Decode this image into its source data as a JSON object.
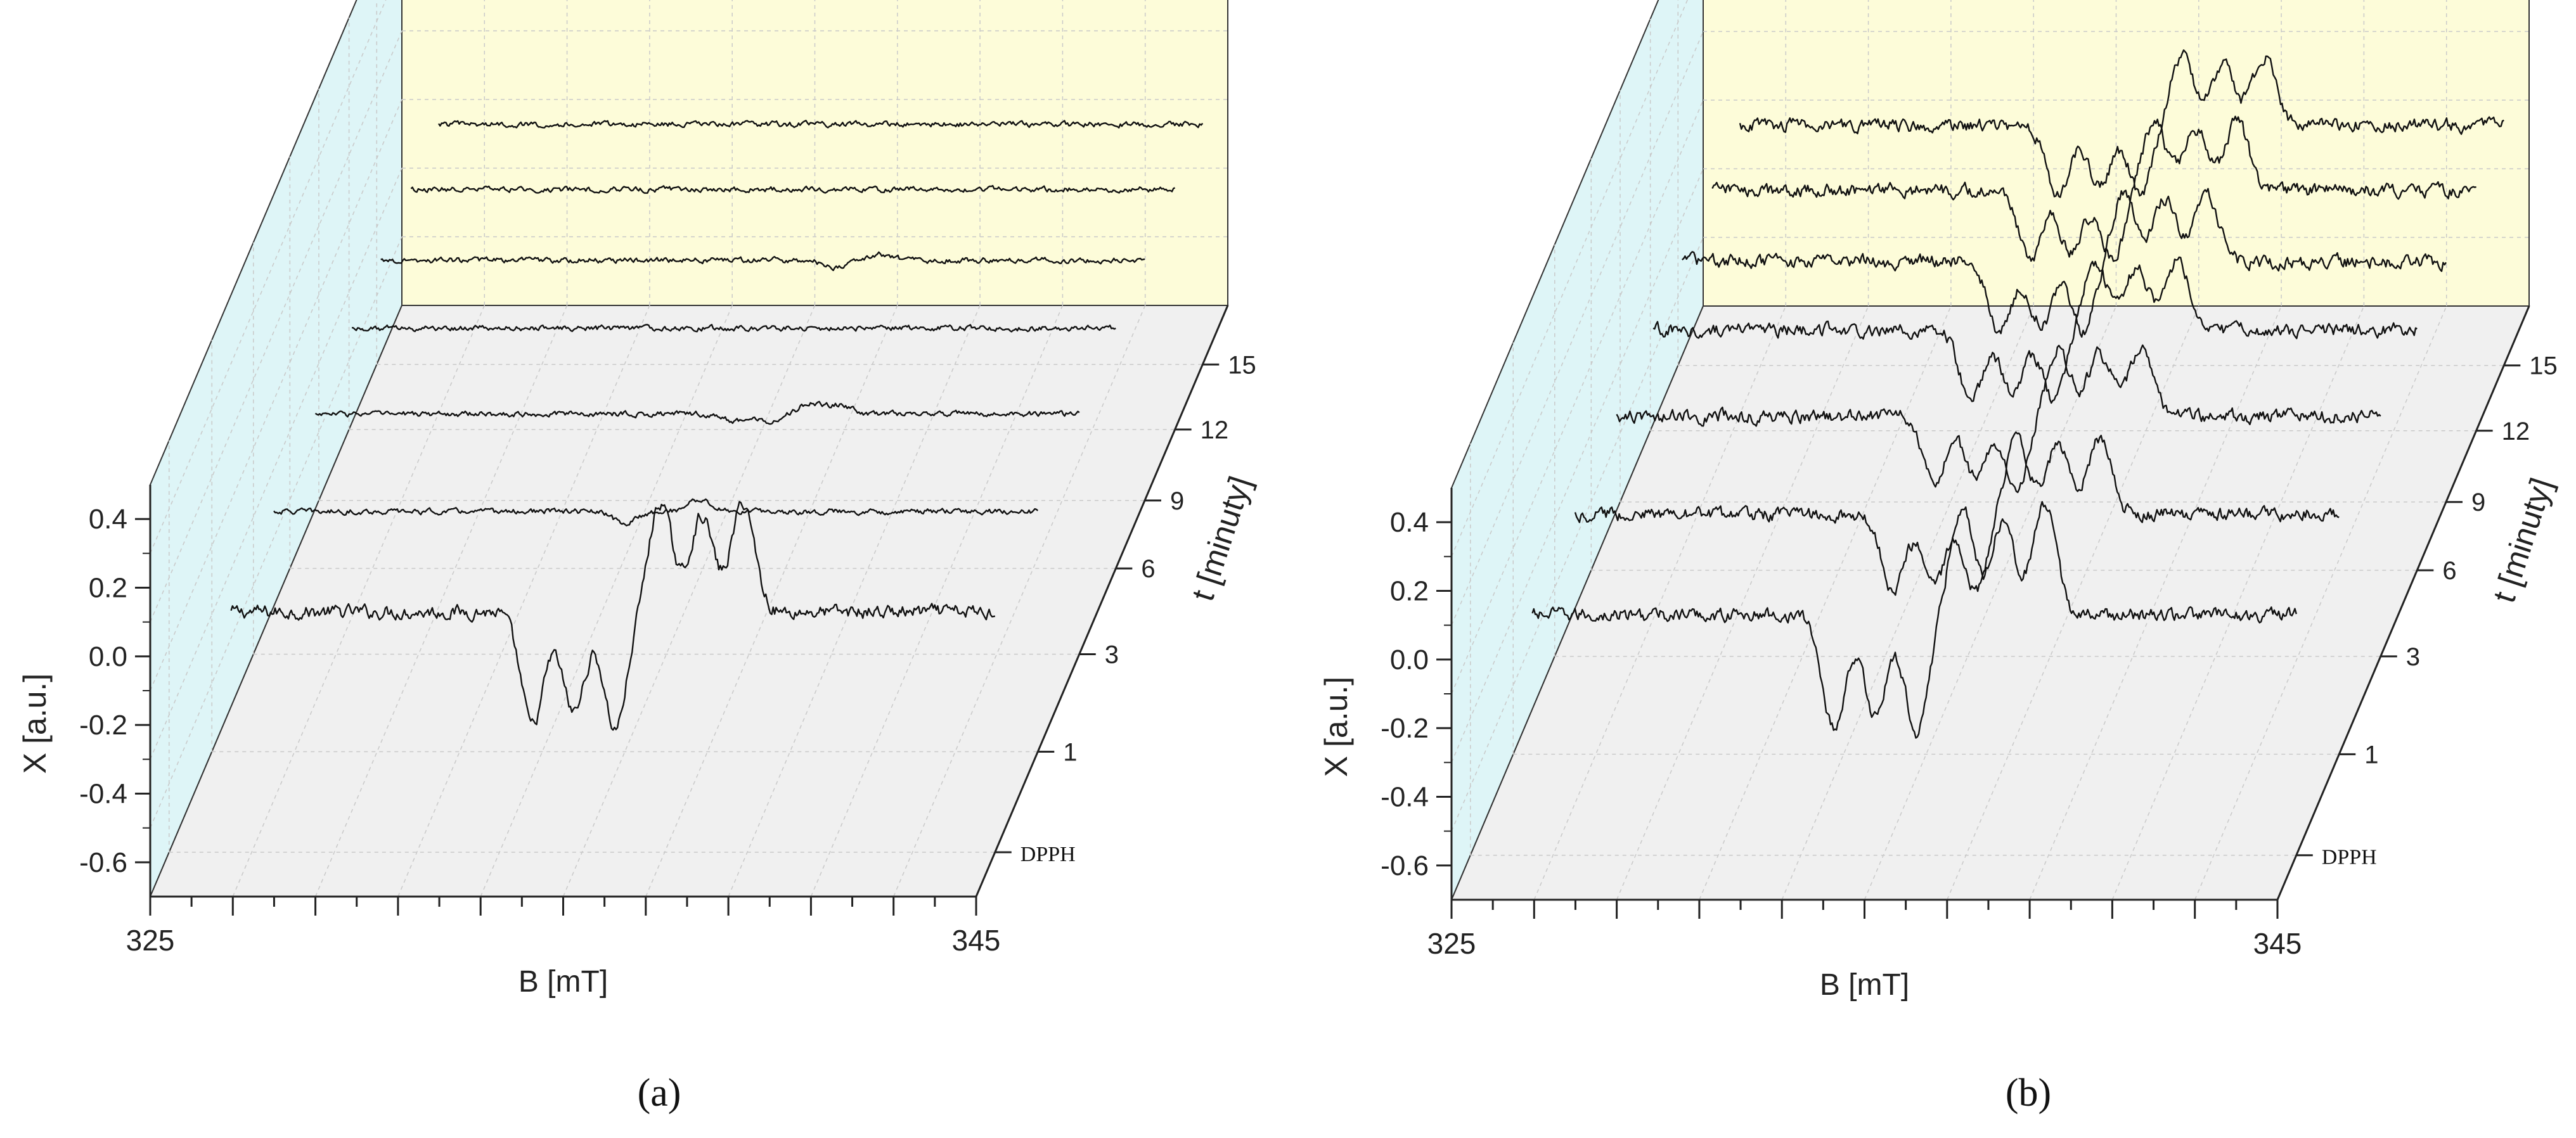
{
  "chart_data": [
    {
      "type": "line",
      "subtype": "3d-waterfall",
      "panel_label": "(a)",
      "xlabel": "B [mT]",
      "ylabel": "X  [a.u.]",
      "zlabel": "t [minuty]",
      "x_ticks": [
        "325",
        "345"
      ],
      "xlim": [
        325,
        345
      ],
      "y_ticks": [
        "0.4",
        "0.2",
        "0.0",
        "-0.2",
        "-0.4",
        "-0.6"
      ],
      "ylim": [
        -0.7,
        0.5
      ],
      "z_ticks": [
        "DPPH",
        "1",
        "3",
        "6",
        "9",
        "12",
        "15"
      ],
      "colors": {
        "left_wall": "#def5f7",
        "back_wall": "#fdfcd9",
        "floor": "#f0f0f0",
        "trace": "#111111"
      },
      "series": [
        {
          "name": "DPPH",
          "peaks": [
            {
              "B": 333.8,
              "A": -0.33
            },
            {
              "B": 334.8,
              "A": -0.29
            },
            {
              "B": 335.8,
              "A": -0.34
            },
            {
              "B": 336.9,
              "A": 0.32
            },
            {
              "B": 337.9,
              "A": 0.28
            },
            {
              "B": 338.9,
              "A": 0.32
            }
          ],
          "noise": 0.02
        },
        {
          "name": "1",
          "peaks": [
            {
              "B": 335.0,
              "A": -0.035
            },
            {
              "B": 336.8,
              "A": 0.035
            }
          ],
          "noise": 0.008
        },
        {
          "name": "3",
          "peaks": [
            {
              "B": 336.6,
              "A": -0.02
            },
            {
              "B": 337.4,
              "A": -0.02
            },
            {
              "B": 338.5,
              "A": 0.03
            },
            {
              "B": 339.2,
              "A": 0.025
            }
          ],
          "noise": 0.008
        },
        {
          "name": "6",
          "peaks": [],
          "noise": 0.008
        },
        {
          "name": "9",
          "peaks": [
            {
              "B": 337.5,
              "A": -0.02
            },
            {
              "B": 338.6,
              "A": 0.018
            }
          ],
          "noise": 0.008
        },
        {
          "name": "12",
          "peaks": [],
          "noise": 0.008
        },
        {
          "name": "15",
          "peaks": [],
          "noise": 0.008
        }
      ]
    },
    {
      "type": "line",
      "subtype": "3d-waterfall",
      "panel_label": "(b)",
      "xlabel": "B [mT]",
      "ylabel": "X  [a.u.]",
      "zlabel": "t [minuty]",
      "x_ticks": [
        "325",
        "345"
      ],
      "xlim": [
        325,
        345
      ],
      "y_ticks": [
        "0.4",
        "0.2",
        "0.0",
        "-0.2",
        "-0.4",
        "-0.6"
      ],
      "ylim": [
        -0.7,
        0.5
      ],
      "z_ticks": [
        "DPPH",
        "1",
        "3",
        "6",
        "9",
        "12",
        "15"
      ],
      "colors": {
        "left_wall": "#def5f7",
        "back_wall": "#fdfcd9",
        "floor": "#f0f0f0",
        "trace": "#111111"
      },
      "series": [
        {
          "name": "DPPH",
          "peaks": [
            {
              "B": 333.8,
              "A": -0.33
            },
            {
              "B": 334.8,
              "A": -0.29
            },
            {
              "B": 335.8,
              "A": -0.34
            },
            {
              "B": 336.9,
              "A": 0.32
            },
            {
              "B": 337.9,
              "A": 0.28
            },
            {
              "B": 338.9,
              "A": 0.32
            }
          ],
          "noise": 0.02
        },
        {
          "name": "1",
          "peaks": [
            {
              "B": 334.2,
              "A": -0.22
            },
            {
              "B": 335.2,
              "A": -0.2
            },
            {
              "B": 336.2,
              "A": -0.22
            },
            {
              "B": 337.2,
              "A": 0.22
            },
            {
              "B": 338.2,
              "A": 0.2
            },
            {
              "B": 339.2,
              "A": 0.22
            }
          ],
          "noise": 0.02
        },
        {
          "name": "3",
          "peaks": [
            {
              "B": 334.2,
              "A": -0.2
            },
            {
              "B": 335.2,
              "A": -0.18
            },
            {
              "B": 336.2,
              "A": -0.2
            },
            {
              "B": 337.2,
              "A": 0.2
            },
            {
              "B": 338.2,
              "A": 0.18
            },
            {
              "B": 339.2,
              "A": 0.2
            }
          ],
          "noise": 0.02
        },
        {
          "name": "6",
          "peaks": [
            {
              "B": 334.2,
              "A": -0.2
            },
            {
              "B": 335.2,
              "A": -0.18
            },
            {
              "B": 336.2,
              "A": -0.2
            },
            {
              "B": 337.2,
              "A": 0.2
            },
            {
              "B": 338.2,
              "A": 0.18
            },
            {
              "B": 339.2,
              "A": 0.2
            }
          ],
          "noise": 0.02
        },
        {
          "name": "9",
          "peaks": [
            {
              "B": 334.2,
              "A": -0.2
            },
            {
              "B": 335.2,
              "A": -0.18
            },
            {
              "B": 336.2,
              "A": -0.2
            },
            {
              "B": 337.2,
              "A": 0.2
            },
            {
              "B": 338.2,
              "A": 0.18
            },
            {
              "B": 339.2,
              "A": 0.2
            }
          ],
          "noise": 0.02
        },
        {
          "name": "12",
          "peaks": [
            {
              "B": 334.2,
              "A": -0.2
            },
            {
              "B": 335.2,
              "A": -0.18
            },
            {
              "B": 336.2,
              "A": -0.2
            },
            {
              "B": 337.2,
              "A": 0.2
            },
            {
              "B": 338.2,
              "A": 0.18
            },
            {
              "B": 339.2,
              "A": 0.2
            }
          ],
          "noise": 0.02
        },
        {
          "name": "15",
          "peaks": [
            {
              "B": 334.2,
              "A": -0.2
            },
            {
              "B": 335.2,
              "A": -0.18
            },
            {
              "B": 336.2,
              "A": -0.2
            },
            {
              "B": 337.2,
              "A": 0.2
            },
            {
              "B": 338.2,
              "A": 0.18
            },
            {
              "B": 339.2,
              "A": 0.2
            }
          ],
          "noise": 0.02
        }
      ]
    }
  ]
}
